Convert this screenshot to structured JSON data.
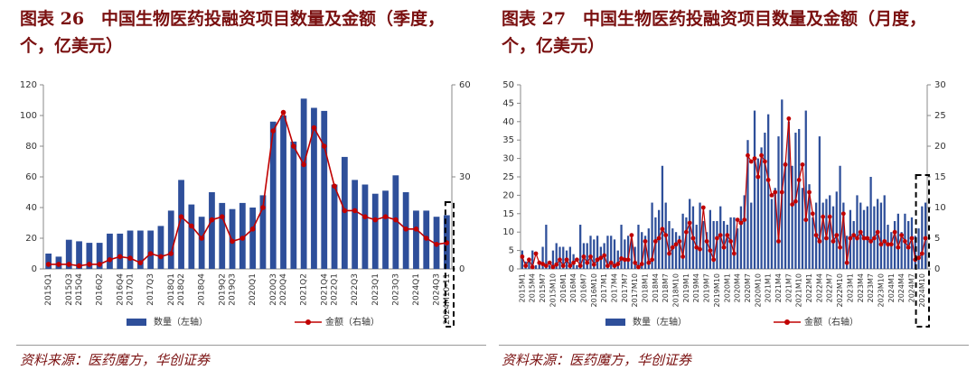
{
  "chart_data": [
    {
      "type": "bar-line",
      "title": "图表 26　中国生物医药投融资项目数量及金额（季度，个，亿美元）",
      "source": "资料来源：医药魔方，华创证券",
      "categories": [
        "2015Q1",
        null,
        "2015Q3",
        "2015Q4",
        null,
        "2016Q2",
        null,
        "2016Q4",
        "2017Q1",
        null,
        "2017Q3",
        null,
        "2018Q1",
        "2018Q2",
        null,
        "2018Q4",
        null,
        "2019Q2",
        "2019Q3",
        null,
        "2020Q1",
        null,
        "2020Q3",
        "2020Q4",
        null,
        "2021Q2",
        null,
        "2021Q4",
        "2022Q1",
        null,
        "2022Q3",
        null,
        "2023Q1",
        null,
        "2023Q3",
        null,
        "2024Q1",
        null,
        "2024Q3",
        "2024M10-11"
      ],
      "series": [
        {
          "name": "数量（左轴）",
          "color": "#2e4f9a",
          "axis": "y",
          "values": [
            10,
            8,
            19,
            18,
            17,
            17,
            23,
            23,
            25,
            25,
            25,
            28,
            38,
            58,
            42,
            34,
            50,
            43,
            39,
            43,
            40,
            48,
            96,
            100,
            83,
            111,
            105,
            103,
            55,
            73,
            58,
            55,
            49,
            51,
            61,
            50,
            38,
            38,
            34,
            35
          ]
        },
        {
          "name": "金额（右轴）",
          "color": "#c00000",
          "axis": "y2",
          "values": [
            1.5,
            1.5,
            1.5,
            1,
            1.5,
            1.5,
            3,
            4,
            3.5,
            2,
            5,
            4,
            5,
            17,
            14,
            10,
            16,
            17,
            9,
            10,
            13,
            20,
            45,
            51,
            40,
            34,
            46,
            40,
            27,
            19,
            19,
            17,
            16,
            17,
            16,
            13,
            13,
            10,
            8,
            8.5
          ]
        }
      ],
      "ylim": [
        0,
        120
      ],
      "yticks": [
        0,
        20,
        40,
        60,
        80,
        100,
        120
      ],
      "y2lim": [
        0,
        60
      ],
      "y2ticks": [
        0,
        30,
        60
      ],
      "grid": false
    },
    {
      "type": "bar-line",
      "title": "图表 27　中国生物医药投融资项目数量及金额（月度，个，亿美元）",
      "source": "资料来源：医药魔方，华创证券",
      "categories": [
        "2015M1",
        null,
        null,
        "2015M4",
        null,
        null,
        "2015M7",
        null,
        null,
        "2015M10",
        null,
        null,
        "2016M1",
        null,
        null,
        "2016M4",
        null,
        null,
        "2016M7",
        null,
        null,
        "2016M10",
        null,
        null,
        "2017M1",
        null,
        null,
        "2017M4",
        null,
        null,
        "2017M7",
        null,
        null,
        "2017M10",
        null,
        null,
        "2018M1",
        null,
        null,
        "2018M4",
        null,
        null,
        "2018M7",
        null,
        null,
        "2018M10",
        null,
        null,
        "2019M1",
        null,
        null,
        "2019M4",
        null,
        null,
        "2019M7",
        null,
        null,
        "2019M10",
        null,
        null,
        "2020M1",
        null,
        null,
        "2020M4",
        null,
        null,
        "2020M7",
        null,
        null,
        "2020M10",
        null,
        null,
        "2021M1",
        null,
        null,
        "2021M4",
        null,
        null,
        "2021M7",
        null,
        null,
        "2021M10",
        null,
        null,
        "2022M1",
        null,
        null,
        "2022M4",
        null,
        null,
        "2022M7",
        null,
        null,
        "2022M10",
        null,
        null,
        "2023M1",
        null,
        null,
        "2023M4",
        null,
        null,
        "2023M7",
        null,
        null,
        "2023M10",
        null,
        null,
        "2024M1",
        null,
        null,
        "2024M4",
        null,
        null,
        "2024M7",
        null,
        null,
        "2024M10",
        null
      ],
      "series": [
        {
          "name": "数量（左轴）",
          "color": "#2e4f9a",
          "axis": "y",
          "values": [
            5,
            2,
            3,
            5,
            1,
            2,
            6,
            12,
            1,
            5,
            7,
            6,
            6,
            5,
            6,
            4,
            1,
            12,
            7,
            7,
            9,
            8,
            9,
            6,
            7,
            9,
            9,
            8,
            5,
            12,
            8,
            9,
            8,
            6,
            12,
            10,
            9,
            11,
            18,
            14,
            16,
            28,
            18,
            13,
            11,
            10,
            9,
            15,
            14,
            19,
            17,
            12,
            18,
            13,
            10,
            16,
            13,
            13,
            17,
            13,
            12,
            14,
            14,
            11,
            17,
            20,
            35,
            18,
            43,
            30,
            33,
            37,
            42,
            19,
            22,
            36,
            46,
            29,
            40,
            28,
            37,
            38,
            22,
            43,
            23,
            14,
            18,
            36,
            18,
            19,
            20,
            17,
            21,
            28,
            18,
            9,
            16,
            13,
            20,
            18,
            16,
            17,
            25,
            17,
            19,
            18,
            20,
            12,
            10,
            13,
            15,
            10,
            15,
            13,
            14,
            9,
            11,
            17,
            18
          ]
        },
        {
          "name": "金额（右轴）",
          "color": "#c00000",
          "axis": "y2",
          "values": [
            2,
            0.5,
            1.5,
            0.3,
            2.5,
            1,
            0.8,
            0.5,
            1,
            0.3,
            0.7,
            1.5,
            0.5,
            1.5,
            0.5,
            1,
            1.5,
            0.5,
            2,
            1,
            2,
            0.7,
            1.5,
            1.8,
            2.2,
            0.5,
            1,
            0.5,
            0.8,
            1.7,
            1.5,
            1.5,
            5.5,
            1,
            0.3,
            0.8,
            4.5,
            1,
            1.5,
            4.5,
            5,
            6.5,
            5.5,
            2.5,
            3.5,
            4,
            4.5,
            2,
            6,
            7.5,
            5,
            3.5,
            3.2,
            10,
            4.5,
            3,
            1.5,
            5,
            5.5,
            3.5,
            5.5,
            4.5,
            2.5,
            8,
            7.5,
            8,
            18.5,
            17.5,
            18,
            15,
            18.5,
            17.5,
            14.5,
            12,
            12.5,
            4.5,
            12.5,
            17,
            24.5,
            10.5,
            11,
            14.5,
            17,
            8,
            12.5,
            9,
            5.5,
            4.5,
            8.5,
            5,
            8.5,
            4.5,
            5.5,
            3.5,
            9,
            1,
            5,
            5.5,
            5,
            6,
            5,
            5,
            4.5,
            5,
            6,
            4,
            4.5,
            4,
            4,
            6,
            3.5,
            5.5,
            4.5,
            3.5,
            5,
            1.5,
            1.8,
            2.5,
            5
          ]
        }
      ],
      "ylim": [
        0,
        50
      ],
      "yticks": [
        0,
        5,
        10,
        15,
        20,
        25,
        30,
        35,
        40,
        45,
        50
      ],
      "y2lim": [
        0,
        30
      ],
      "y2ticks": [
        0,
        5,
        10,
        15,
        20,
        25,
        30
      ],
      "grid": false
    }
  ]
}
